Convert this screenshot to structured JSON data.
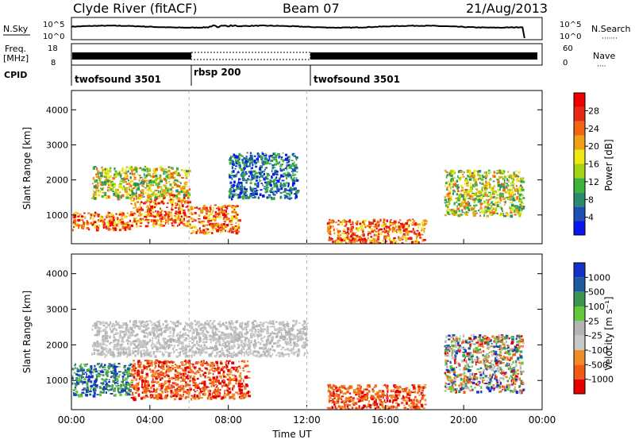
{
  "header": {
    "title": "Clyde River (fitACF)",
    "beam": "Beam 07",
    "date": "21/Aug/2013"
  },
  "noise_panel": {
    "left_label": "N.Sky",
    "right_label": "N.Search",
    "left_ticks": [
      "10^5",
      "10^0"
    ],
    "right_ticks": [
      "10^5",
      "10^0"
    ]
  },
  "freq_panel": {
    "left_label_line1": "Freq.",
    "left_label_line2": "[MHz]",
    "right_label": "Nave",
    "left_ticks": [
      "18",
      "8"
    ],
    "right_ticks": [
      "60",
      "0"
    ]
  },
  "cpid": {
    "label": "CPID",
    "segments": [
      {
        "name": "twofsound 3501",
        "start_h": 0,
        "end_h": 6
      },
      {
        "name": "rbsp 200",
        "start_h": 6,
        "end_h": 12
      },
      {
        "name": "twofsound 3501",
        "start_h": 12,
        "end_h": 24
      }
    ]
  },
  "colors": {
    "power": [
      "#0a14f0",
      "#1e50b4",
      "#2a8c6a",
      "#3cb43c",
      "#a6d214",
      "#f0e614",
      "#f0a014",
      "#f06414",
      "#e62814",
      "#f00000"
    ],
    "velocity": [
      "#e60000",
      "#f05a14",
      "#f08c28",
      "#c8c8c8",
      "#b4b4b4",
      "#64c83c",
      "#3c9650",
      "#1e5aa0",
      "#1432c8"
    ]
  },
  "chart_data": [
    {
      "type": "heatmap",
      "title": "",
      "ylabel": "Slant Range [km]",
      "xlabel": "",
      "xlim": [
        0,
        24
      ],
      "ylim": [
        180,
        4550
      ],
      "y_ticks": [
        1000,
        2000,
        3000,
        4000
      ],
      "x_tick_values": [
        0,
        4,
        8,
        12,
        16,
        20,
        24
      ],
      "x_tick_labels": [
        "00:00",
        "04:00",
        "08:00",
        "12:00",
        "16:00",
        "20:00",
        "00:00"
      ],
      "colorbar": {
        "label": "Power [dB]",
        "ticks": [
          4,
          8,
          12,
          16,
          20,
          24,
          28
        ],
        "range": [
          0,
          32
        ]
      },
      "echo_bands": [
        {
          "x": [
            0,
            3
          ],
          "range_km": [
            600,
            1100
          ],
          "level": "high"
        },
        {
          "x": [
            3,
            6
          ],
          "range_km": [
            700,
            1600
          ],
          "level": "high"
        },
        {
          "x": [
            6,
            8.5
          ],
          "range_km": [
            500,
            1300
          ],
          "level": "high"
        },
        {
          "x": [
            1,
            6
          ],
          "range_km": [
            1500,
            2400
          ],
          "level": "mid"
        },
        {
          "x": [
            8,
            11.5
          ],
          "range_km": [
            1500,
            2800
          ],
          "level": "low"
        },
        {
          "x": [
            13,
            18
          ],
          "range_km": [
            200,
            900
          ],
          "level": "high"
        },
        {
          "x": [
            19,
            23
          ],
          "range_km": [
            1000,
            2300
          ],
          "level": "mid"
        }
      ]
    },
    {
      "type": "heatmap",
      "title": "",
      "ylabel": "Slant Range [km]",
      "xlabel": "Time UT",
      "xlim": [
        0,
        24
      ],
      "ylim": [
        180,
        4550
      ],
      "y_ticks": [
        1000,
        2000,
        3000,
        4000
      ],
      "x_tick_values": [
        0,
        4,
        8,
        12,
        16,
        20,
        24
      ],
      "x_tick_labels": [
        "00:00",
        "04:00",
        "08:00",
        "12:00",
        "16:00",
        "20:00",
        "00:00"
      ],
      "colorbar": {
        "label": "Velocity [m s⁻¹]",
        "ticks": [
          1000,
          500,
          100,
          25,
          -25,
          -100,
          -500,
          -1000
        ]
      },
      "echo_bands": [
        {
          "x": [
            0,
            3
          ],
          "range_km": [
            600,
            1500
          ],
          "velocity": "positive"
        },
        {
          "x": [
            3,
            9
          ],
          "range_km": [
            500,
            1600
          ],
          "velocity": "negative"
        },
        {
          "x": [
            1,
            12
          ],
          "range_km": [
            1700,
            2700
          ],
          "velocity": "near-zero"
        },
        {
          "x": [
            13,
            18
          ],
          "range_km": [
            200,
            900
          ],
          "velocity": "negative"
        },
        {
          "x": [
            19,
            23
          ],
          "range_km": [
            700,
            2300
          ],
          "velocity": "mixed"
        }
      ]
    }
  ]
}
